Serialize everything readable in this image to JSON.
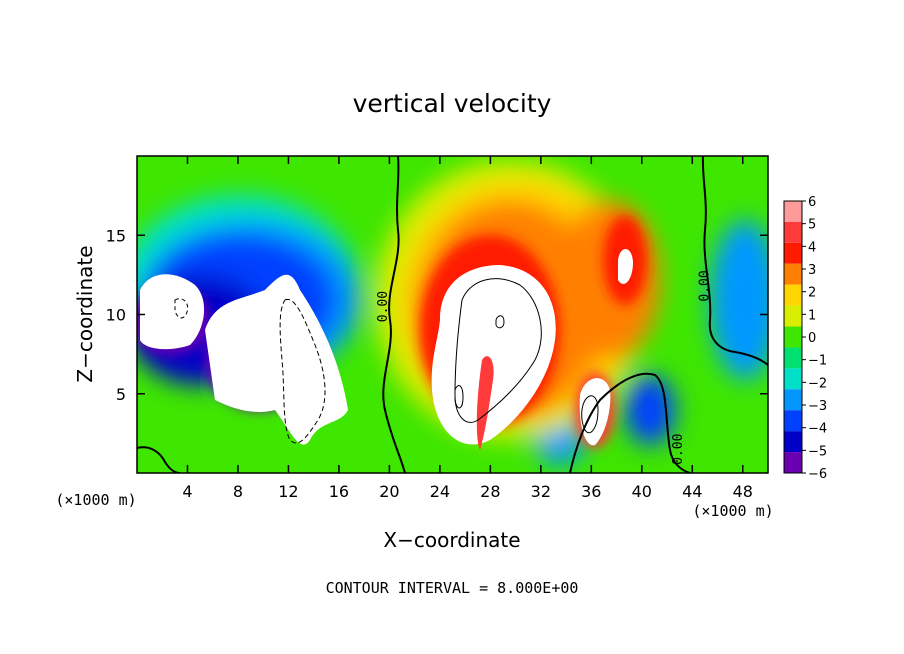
{
  "chart_data": {
    "type": "heatmap",
    "title": "vertical velocity",
    "xlabel": "X−coordinate",
    "ylabel": "Z−coordinate",
    "x_unit_left": "(×1000 m)",
    "x_unit_right": "(×1000 m)",
    "footer": "CONTOUR INTERVAL = 8.000E+00",
    "xlim": [
      0,
      50
    ],
    "ylim": [
      0,
      20
    ],
    "x_ticks": [
      4,
      8,
      12,
      16,
      20,
      24,
      28,
      32,
      36,
      40,
      44,
      48
    ],
    "x_tick_labels": [
      "4",
      "8",
      "12",
      "16",
      "20",
      "24",
      "28",
      "32",
      "36",
      "40",
      "44",
      "48"
    ],
    "y_ticks": [
      5,
      10,
      15
    ],
    "y_tick_labels": [
      "5",
      "10",
      "15"
    ],
    "colorbar": {
      "levels": [
        6,
        5,
        4,
        3,
        2,
        1,
        0,
        -1,
        -2,
        -3,
        -4,
        -5,
        -6
      ],
      "labels": [
        "6",
        "5",
        "4",
        "3",
        "2",
        "1",
        "0",
        "−1",
        "−2",
        "−3",
        "−4",
        "−5",
        "−6"
      ],
      "colors": [
        "#ff9a9a",
        "#ff3a3a",
        "#ff1a00",
        "#ff8000",
        "#ffd400",
        "#d8ee00",
        "#3ee600",
        "#00e070",
        "#00e0c8",
        "#0098ff",
        "#0040ff",
        "#0000c8",
        "#6a00b0"
      ]
    },
    "contour_labels": [
      {
        "text": "0.00",
        "x": 19.8,
        "y": 10.5
      },
      {
        "text": "0.00",
        "x": 45.3,
        "y": 11.8
      },
      {
        "text": "0.00",
        "x": 43.2,
        "y": 1.5
      }
    ]
  }
}
